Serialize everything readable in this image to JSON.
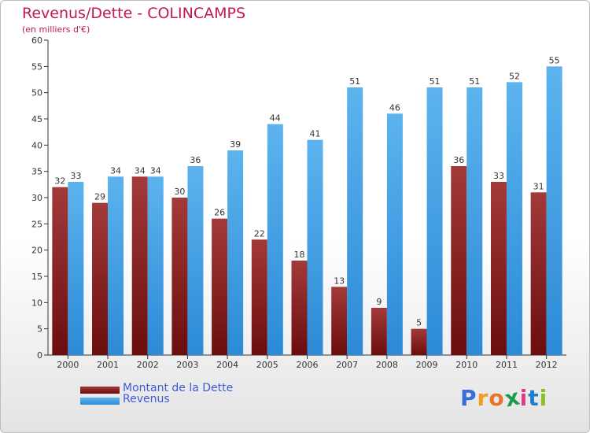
{
  "title": "Revenus/Dette - COLINCAMPS",
  "subtitle": "(en milliers d'€)",
  "colors": {
    "dette": "#6b0d0d",
    "dette_light": "#a33a3a",
    "revenus": "#2c8ad6",
    "revenus_light": "#5cb3ee",
    "title": "#c2185b",
    "legend_text": "#3b5bdb"
  },
  "chart_data": {
    "type": "bar",
    "categories": [
      "2000",
      "2001",
      "2002",
      "2003",
      "2004",
      "2005",
      "2006",
      "2007",
      "2008",
      "2009",
      "2010",
      "2011",
      "2012"
    ],
    "series": [
      {
        "name": "Montant de la Dette",
        "values": [
          32,
          29,
          34,
          30,
          26,
          22,
          18,
          13,
          9,
          5,
          36,
          33,
          31
        ]
      },
      {
        "name": "Revenus",
        "values": [
          33,
          34,
          34,
          36,
          39,
          44,
          41,
          51,
          46,
          51,
          51,
          52,
          55
        ]
      }
    ],
    "ylim": [
      0,
      60
    ],
    "yticks": [
      0,
      5,
      10,
      15,
      20,
      25,
      30,
      35,
      40,
      45,
      50,
      55,
      60
    ],
    "grid": false,
    "legend_position": "bottom-left"
  },
  "logo": {
    "text": "Proxiti",
    "letters": [
      "P",
      "r",
      "o",
      "x",
      "i",
      "t",
      "i"
    ],
    "colors": [
      "#3a6fd8",
      "#f29d1e",
      "#e8732a",
      "#1c9c4a",
      "#e03a8c",
      "#1b7fd0",
      "#8bbf2a"
    ]
  }
}
